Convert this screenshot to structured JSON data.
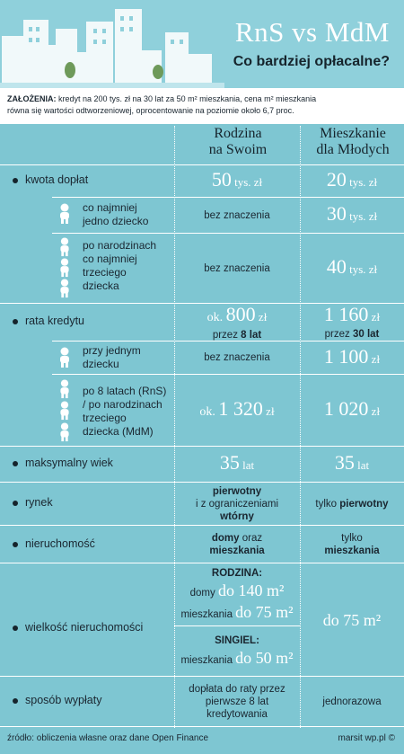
{
  "header": {
    "title": "RnS vs MdM",
    "subtitle": "Co bardziej opłacalne?"
  },
  "assumptions": {
    "label": "ZAŁOŻENIA:",
    "text_line1": " kredyt na 200 tys. zł na 30 lat za 50 m² mieszkania, cena m² mieszkania",
    "text_line2": "równa się wartości odtworzeniowej, oprocentowanie na poziomie około 6,7 proc."
  },
  "columns": {
    "rns_line1": "Rodzina",
    "rns_line2": "na Swoim",
    "mdm_line1": "Mieszkanie",
    "mdm_line2": "dla Młodych"
  },
  "rows": {
    "kwota": {
      "label": "kwota dopłat",
      "rns_num": "50",
      "rns_unit": " tys. zł",
      "mdm_num": "20",
      "mdm_unit": " tys. zł"
    },
    "jedno": {
      "label_line1": "co najmniej",
      "label_line2": "jedno dziecko",
      "rns": "bez znaczenia",
      "mdm_num": "30",
      "mdm_unit": " tys. zł"
    },
    "trzecie": {
      "label_line1": "po narodzinach",
      "label_line2": "co najmniej",
      "label_line3": "trzeciego",
      "label_line4": "dziecka",
      "rns": "bez znaczenia",
      "mdm_num": "40",
      "mdm_unit": " tys. zł"
    },
    "rata": {
      "label": "rata kredytu",
      "rns_pre": "ok. ",
      "rns_num": "800",
      "rns_unit": " zł",
      "rns_sub_pre": "przez ",
      "rns_sub_bold": "8 lat",
      "mdm_num": "1 160",
      "mdm_unit": " zł",
      "mdm_sub_pre": "przez ",
      "mdm_sub_bold": "30 lat"
    },
    "jednym": {
      "label_line1": "przy jednym",
      "label_line2": "dziecku",
      "rns": "bez znaczenia",
      "mdm_num": "1 100",
      "mdm_unit": " zł"
    },
    "po8": {
      "label_line1": "po 8 latach (RnS)",
      "label_line2": "/ po narodzinach",
      "label_line3": "trzeciego",
      "label_line4": "dziecka (MdM)",
      "rns_pre": "ok. ",
      "rns_num": "1 320",
      "rns_unit": " zł",
      "mdm_num": "1 020",
      "mdm_unit": " zł"
    },
    "wiek": {
      "label": "maksymalny wiek",
      "rns_num": "35",
      "rns_unit": " lat",
      "mdm_num": "35",
      "mdm_unit": " lat"
    },
    "rynek": {
      "label": "rynek",
      "rns_bold1": "pierwotny",
      "rns_line2": "i z ograniczeniami",
      "rns_bold3": "wtórny",
      "mdm_pre": "tylko ",
      "mdm_bold": "pierwotny"
    },
    "nieruchomosc": {
      "label": "nieruchomość",
      "rns_bold1": "domy",
      "rns_mid": " oraz",
      "rns_bold2": "mieszkania",
      "mdm_line1": "tylko",
      "mdm_bold": "mieszkania"
    },
    "wielkosc": {
      "label": "wielkość nieruchomości",
      "rns_head1": "RODZINA:",
      "rns_l1_pre": "domy ",
      "rns_l1_num": "do 140 m²",
      "rns_l2_pre": "mieszkania ",
      "rns_l2_num": "do 75 m²",
      "rns_head2": "SINGIEL:",
      "rns_l3_pre": "mieszkania ",
      "rns_l3_num": "do 50 m²",
      "mdm": "do 75 m²"
    },
    "wyplata": {
      "label": "sposób wypłaty",
      "rns_line1": "dopłata do raty przez",
      "rns_line2": "pierwsze 8 lat",
      "rns_line3": "kredytowania",
      "mdm": "jednorazowa"
    }
  },
  "footer": {
    "source": "źródło: obliczenia własne oraz dane Open Finance",
    "author": "marsit wp.pl ©"
  },
  "colors": {
    "background": "#7ec6d2",
    "header": "#8fd0db",
    "text_dark": "#1a2630",
    "numbers": "#ffffff"
  },
  "icons": [
    "skyline-illustration",
    "child-icon"
  ]
}
